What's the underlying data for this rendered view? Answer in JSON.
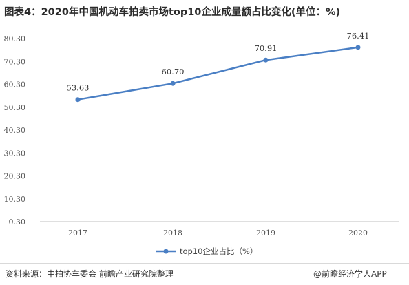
{
  "title": "图表4：2020年中国机动车拍卖市场top10企业成量额占比变化(单位：%)",
  "source": "资料来源：中拍协车委会 前瞻产业研究院整理",
  "brand": "@前瞻经济学人APP",
  "colors": {
    "series": "#4a7fc4"
  },
  "chart_data": {
    "type": "line",
    "categories": [
      "2017",
      "2018",
      "2019",
      "2020"
    ],
    "series": [
      {
        "name": "top10企业占比（%）",
        "values": [
          53.63,
          60.7,
          70.91,
          76.41
        ]
      }
    ],
    "data_labels": [
      "53.63",
      "60.70",
      "70.91",
      "76.41"
    ],
    "yticks": [
      "80.30",
      "70.30",
      "60.30",
      "50.30",
      "40.30",
      "30.30",
      "20.30",
      "10.30",
      "0.30"
    ],
    "ylim": [
      0.3,
      80.3
    ],
    "grid": false,
    "legend": "bottom"
  }
}
